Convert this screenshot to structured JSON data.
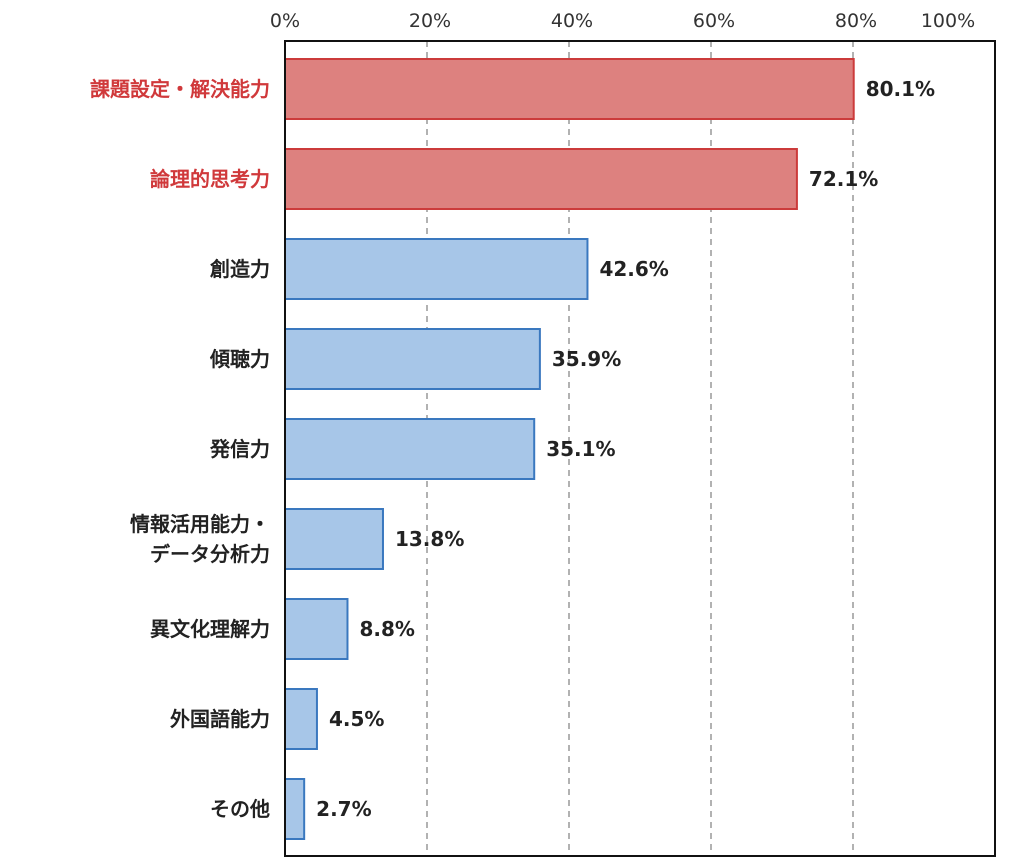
{
  "chart_data": {
    "type": "bar",
    "orientation": "horizontal",
    "categories": [
      [
        "課題設定・解決能力"
      ],
      [
        "論理的思考力"
      ],
      [
        "創造力"
      ],
      [
        "傾聴力"
      ],
      [
        "発信力"
      ],
      [
        "情報活用能力・",
        "データ分析力"
      ],
      [
        "異文化理解力"
      ],
      [
        "外国語能力"
      ],
      [
        "その他"
      ]
    ],
    "values": [
      80.1,
      72.1,
      42.6,
      35.9,
      35.1,
      13.8,
      8.8,
      4.5,
      2.7
    ],
    "data_labels": [
      "80.1%",
      "72.1%",
      "42.6%",
      "35.9%",
      "35.1%",
      "13.8%",
      "8.8%",
      "4.5%",
      "2.7%"
    ],
    "highlighted": [
      true,
      true,
      false,
      false,
      false,
      false,
      false,
      false,
      false
    ],
    "xlim": [
      0,
      100
    ],
    "x_ticks": [
      0,
      20,
      40,
      60,
      80,
      100
    ],
    "x_tick_labels": [
      "0%",
      "20%",
      "40%",
      "60%",
      "80%",
      "100%"
    ],
    "x_axis_position": "top",
    "grid": "vertical dashed",
    "colors": {
      "highlight_fill": "#dd817f",
      "highlight_stroke": "#cc3b3b",
      "highlight_label": "#d0393b",
      "normal_fill": "#a7c6e8",
      "normal_stroke": "#3a78bf",
      "text": "#222222"
    }
  }
}
